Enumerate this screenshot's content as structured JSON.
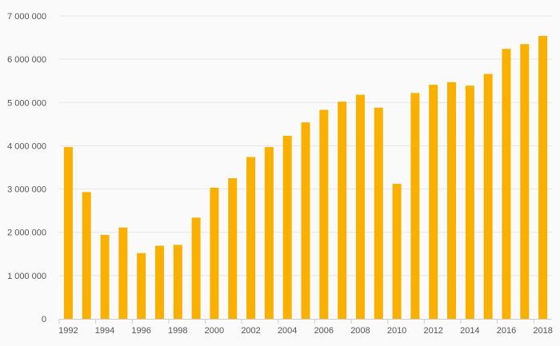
{
  "chart_data": {
    "type": "bar",
    "title": "",
    "xlabel": "",
    "ylabel": "",
    "ylim": [
      0,
      7000000
    ],
    "grid": true,
    "legend": "none",
    "bar_color": "#f9b000",
    "categories": [
      "1992",
      "1993",
      "1994",
      "1995",
      "1996",
      "1997",
      "1998",
      "1999",
      "2000",
      "2001",
      "2002",
      "2003",
      "2004",
      "2005",
      "2006",
      "2007",
      "2008",
      "2009",
      "2010",
      "2011",
      "2012",
      "2013",
      "2014",
      "2015",
      "2016",
      "2017",
      "2018"
    ],
    "values": [
      3970000,
      2930000,
      1940000,
      2110000,
      1520000,
      1690000,
      1710000,
      2340000,
      3030000,
      3250000,
      3740000,
      3970000,
      4230000,
      4540000,
      4830000,
      5020000,
      5180000,
      4880000,
      3120000,
      5220000,
      5410000,
      5470000,
      5390000,
      5660000,
      6240000,
      6350000,
      6540000
    ],
    "y_ticks": [
      0,
      1000000,
      2000000,
      3000000,
      4000000,
      5000000,
      6000000,
      7000000
    ],
    "y_tick_labels": [
      "0",
      "1 000 000",
      "2 000 000",
      "3 000 000",
      "4 000 000",
      "5 000 000",
      "6 000 000",
      "7 000 000"
    ],
    "x_tick_labels": [
      "1992",
      "1994",
      "1996",
      "1998",
      "2000",
      "2002",
      "2004",
      "2006",
      "2008",
      "2010",
      "2012",
      "2014",
      "2016",
      "2018"
    ]
  }
}
